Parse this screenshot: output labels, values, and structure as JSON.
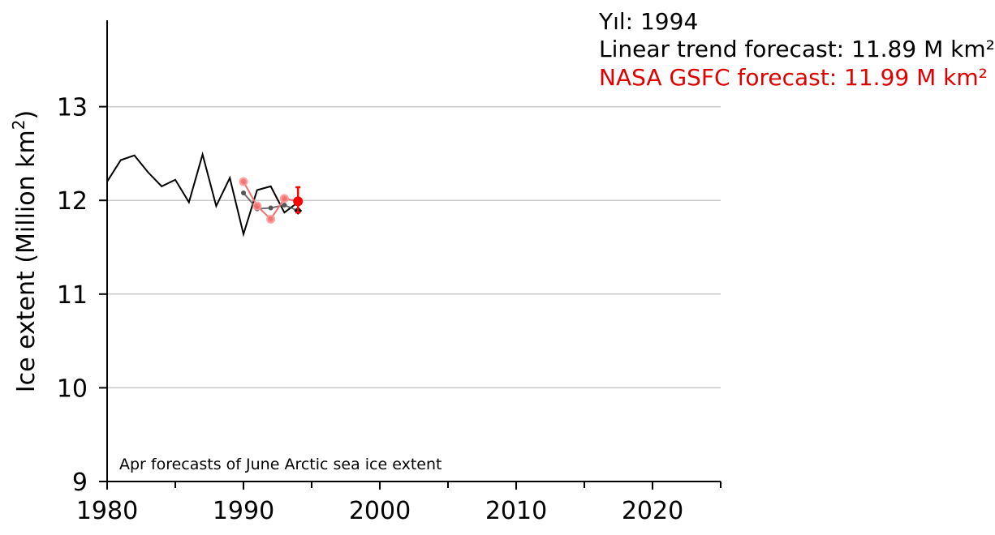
{
  "annotations": {
    "year": "Yıl: 1994",
    "linear_trend": "Linear trend forecast: 11.89 M km²",
    "nasa_gsfc": "NASA GSFC forecast: 11.99 M km²"
  },
  "colors": {
    "observed": "#000000",
    "linear_trend": "#555555",
    "nasa_gsfc": "#ff0000",
    "grid": "#c8c8c8"
  },
  "chart_data": {
    "type": "line",
    "title": "",
    "caption": "Apr forecasts of June Arctic sea ice extent",
    "ylabel_main": "Ice extent (Million km",
    "ylabel_sup": "2",
    "ylabel_close": ")",
    "xlim": [
      1980,
      2025
    ],
    "ylim": [
      9,
      14
    ],
    "x_ticks": [
      1980,
      1990,
      2000,
      2010,
      2020
    ],
    "x_minor_ticks": [
      1985,
      1995,
      2005,
      2015,
      2025
    ],
    "y_ticks": [
      9,
      10,
      11,
      12,
      13
    ],
    "y_grid": [
      10,
      11,
      12,
      13
    ],
    "grid": true,
    "series": [
      {
        "key": "observed",
        "x": [
          1980,
          1981,
          1982,
          1983,
          1984,
          1985,
          1986,
          1987,
          1988,
          1989,
          1990,
          1991,
          1992,
          1993,
          1994
        ],
        "y": [
          12.2,
          12.43,
          12.48,
          12.3,
          12.15,
          12.22,
          11.98,
          12.49,
          11.94,
          12.24,
          11.64,
          12.11,
          12.15,
          11.87,
          11.98
        ]
      },
      {
        "key": "linear_trend",
        "x": [
          1990,
          1991,
          1992,
          1993,
          1994
        ],
        "y": [
          12.08,
          11.91,
          11.92,
          11.95,
          11.89
        ]
      },
      {
        "key": "nasa_gsfc",
        "x": [
          1990,
          1991,
          1992,
          1993,
          1994
        ],
        "y": [
          12.2,
          11.94,
          11.8,
          12.02,
          11.99
        ],
        "error_bar": {
          "x": 1994,
          "low": 11.87,
          "high": 12.14
        }
      }
    ]
  }
}
